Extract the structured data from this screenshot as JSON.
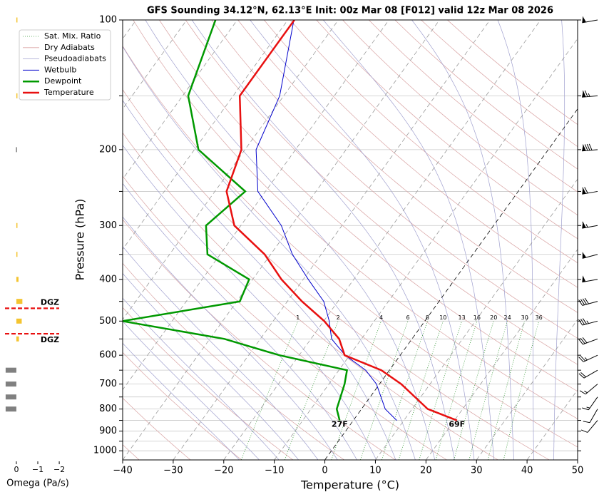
{
  "chart_data": [
    {
      "type": "skewt",
      "title": "GFS Sounding 34.12°N, 62.13°E Init: 00z Mar 08 [F012] valid 12z Mar 08 2026",
      "xlabel": "Temperature (°C)",
      "ylabel": "Pressure (hPa)",
      "xlim": [
        -40,
        50
      ],
      "xticks": [
        {
          "value": -40,
          "label": "−40"
        },
        {
          "value": -30,
          "label": "−30"
        },
        {
          "value": -20,
          "label": "−20"
        },
        {
          "value": -10,
          "label": "−10"
        },
        0,
        10,
        20,
        30,
        40,
        50
      ],
      "ylim": [
        1050,
        100
      ],
      "log_y": true,
      "yticks": [
        100,
        200,
        300,
        400,
        500,
        600,
        700,
        800,
        900,
        1000
      ],
      "y_minor_ticks": [
        150,
        250,
        350,
        450,
        550,
        650,
        750,
        850,
        950
      ],
      "grid": true,
      "legend": "upper left",
      "levels": [
        850,
        800,
        700,
        650,
        600,
        550,
        500,
        450,
        400,
        350,
        300,
        250,
        200,
        150,
        100
      ],
      "background_lines": [
        {
          "name": "Sat. Mix. Ratio",
          "color": "#3a9a3a"
        },
        {
          "name": "Dry Adiabats",
          "color": "#d9a3a3"
        },
        {
          "name": "Pseudoadiabats",
          "color": "#a0a0cf"
        }
      ],
      "mixing_ratio_labels": [
        1,
        2,
        4,
        6,
        8,
        10,
        13,
        16,
        20,
        24,
        30,
        36
      ],
      "series": [
        {
          "name": "Wetbulb",
          "color": "#0000cc",
          "values": [
            8.6,
            4.7,
            -0.6,
            -4.7,
            -10.9,
            -15.9,
            -18.9,
            -22.8,
            -29,
            -35.7,
            -42,
            -51.5,
            -57.8,
            -60.8,
            -68.8
          ]
        },
        {
          "name": "Dewpoint",
          "color": "#009900",
          "values": [
            -2.7,
            -4.9,
            -6.9,
            -8.4,
            -23.9,
            -37.1,
            -59.8,
            -39.4,
            -40.7,
            -52.5,
            -56.9,
            -54,
            -69.2,
            -78.9,
            -84.3
          ]
        },
        {
          "name": "Temperature",
          "color": "#e81010",
          "values": [
            20.5,
            13.1,
            4.3,
            -1.6,
            -11,
            -14.4,
            -19.9,
            -27.1,
            -34.3,
            -41.2,
            -51.3,
            -57.7,
            -60.7,
            -68.7,
            -68.7
          ]
        }
      ],
      "annotations": [
        {
          "text": "27F",
          "color": "#009900"
        },
        {
          "text": "69F",
          "color": "#e81010"
        }
      ],
      "wind": {
        "levels": [
          850,
          800,
          750,
          700,
          650,
          600,
          550,
          500,
          450,
          400,
          350,
          300,
          250,
          200,
          150,
          100
        ],
        "speed": [
          10,
          10,
          15,
          15,
          20,
          25,
          30,
          35,
          40,
          50,
          55,
          65,
          70,
          90,
          75,
          55
        ],
        "direction": [
          220,
          210,
          215,
          230,
          240,
          245,
          250,
          255,
          255,
          260,
          255,
          260,
          260,
          265,
          265,
          260
        ]
      }
    },
    {
      "type": "barh",
      "xlabel": "Omega (Pa/s)",
      "xlim": [
        0.53,
        -2.23
      ],
      "xticks": [
        0,
        {
          "value": -1,
          "label": "−1"
        },
        {
          "value": -2,
          "label": "−2"
        }
      ],
      "levels": [
        100,
        150,
        200,
        300,
        350,
        400,
        450,
        500,
        550,
        650,
        700,
        750,
        800
      ],
      "values": [
        -0.02,
        -0.02,
        0.02,
        -0.05,
        -0.02,
        -0.1,
        -0.28,
        -0.25,
        -0.12,
        0.5,
        0.5,
        0.5,
        0.5
      ],
      "colors": {
        "positive": "#808080",
        "negative": "#f4c430"
      },
      "dgz": [
        {
          "pressure": 467,
          "label": "DGZ",
          "color": "#e81010"
        },
        {
          "pressure": 535,
          "label": "DGZ",
          "color": "#e81010"
        }
      ]
    }
  ]
}
